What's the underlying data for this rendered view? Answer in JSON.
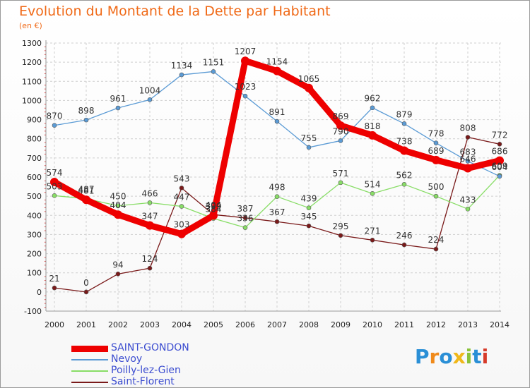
{
  "title": "Evolution du Montant de la Dette par Habitant",
  "unit": "(en €)",
  "logo": "Proxiti",
  "chart_data": {
    "type": "line",
    "title": "Evolution du Montant de la Dette par Habitant",
    "ylabel": "(en €)",
    "xlabel": "",
    "ylim": [
      -100,
      1300
    ],
    "yticks": [
      -100,
      0,
      100,
      200,
      300,
      400,
      500,
      600,
      700,
      800,
      900,
      1000,
      1100,
      1200,
      1300
    ],
    "x": [
      2000,
      2001,
      2002,
      2003,
      2004,
      2005,
      2006,
      2007,
      2008,
      2009,
      2010,
      2011,
      2012,
      2013,
      2014
    ],
    "grid": true,
    "legend_position": "bottom-left",
    "series": [
      {
        "name": "Saint-Florent",
        "color": "#7a1a1a",
        "width": 1.3,
        "marker": 3,
        "values": [
          21,
          0,
          94,
          124,
          543,
          404,
          387,
          367,
          345,
          295,
          271,
          246,
          224,
          808,
          772
        ],
        "labels": [
          "21",
          "0",
          "94",
          "124",
          "543",
          "404",
          "387",
          "367",
          "345",
          "295",
          "271",
          "246",
          "224",
          "808",
          "772"
        ]
      },
      {
        "name": "Poilly-lez-Gien",
        "color": "#88dd66",
        "width": 1.3,
        "marker": 3,
        "values": [
          503,
          487,
          450,
          466,
          447,
          384,
          336,
          498,
          439,
          571,
          514,
          562,
          500,
          433,
          609
        ],
        "labels": [
          "503",
          "487",
          "450",
          "466",
          "447",
          "384",
          "336",
          "498",
          "439",
          "571",
          "514",
          "562",
          "500",
          "433",
          "609"
        ]
      },
      {
        "name": "Nevoy",
        "color": "#5b9bd5",
        "width": 1.3,
        "marker": 3,
        "values": [
          870,
          898,
          961,
          1004,
          1134,
          1151,
          1023,
          891,
          755,
          790,
          962,
          879,
          778,
          683,
          604
        ],
        "labels": [
          "870",
          "898",
          "961",
          "1004",
          "1134",
          "1151",
          "1023",
          "891",
          "755",
          "790",
          "962",
          "879",
          "778",
          "683",
          "604"
        ]
      },
      {
        "name": "SAINT-GONDON",
        "color": "#ee0000",
        "width": 9,
        "marker": 6,
        "values": [
          574,
          481,
          404,
          347,
          303,
          399,
          1207,
          1154,
          1065,
          869,
          818,
          738,
          689,
          646,
          686
        ],
        "labels": [
          "574",
          "481",
          "404",
          "347",
          "303",
          "399",
          "1207",
          "1154",
          "1065",
          "869",
          "818",
          "738",
          "689",
          "646",
          "686"
        ]
      }
    ],
    "legend_order": [
      "SAINT-GONDON",
      "Nevoy",
      "Poilly-lez-Gien",
      "Saint-Florent"
    ]
  }
}
